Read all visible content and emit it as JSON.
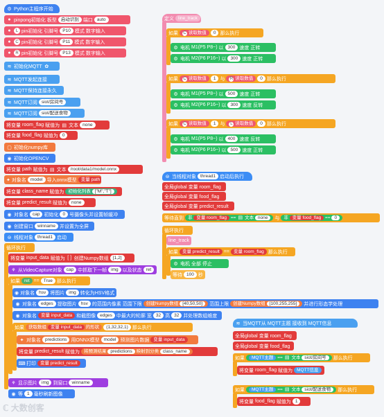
{
  "p1": {
    "b0": "Python主程序开始",
    "b1": [
      "pinpong初始化 板型",
      "启动识别",
      "端口",
      "auto"
    ],
    "b2": [
      "pin初始化 引脚号",
      "P10",
      "模式",
      "数字输入"
    ],
    "b3": [
      "pin初始化 引脚号",
      "P11",
      "模式",
      "数字输入"
    ],
    "b4": [
      "pin初始化 引脚号",
      "P13",
      "模式",
      "数字输入"
    ],
    "b5": "初始化MQTT",
    "b6": "MQTT发起连接",
    "b7": "MQTT保持连接永久",
    "b8": [
      "MQTT订阅",
      "siot/房间号"
    ],
    "b9": [
      "MQTT订阅",
      "siot/配送食物"
    ],
    "b10": [
      "将变量",
      "room_flag",
      "赋值为",
      "文本",
      "none"
    ],
    "b11": [
      "将变量",
      "food_flag",
      "赋值为",
      "0"
    ],
    "b12": "初始化numpy库",
    "b13": "初始化OPENCV",
    "b14": [
      "将变量",
      "path",
      "赋值为",
      "文本",
      "/root/data1/model.onnx"
    ],
    "b15": [
      "对象名",
      "model",
      "导入onnx模型",
      "变量 path"
    ],
    "b16": [
      "将变量",
      "class_name",
      "赋值为",
      "初始化列表",
      "[\"M\",\"T\"]"
    ],
    "b17": [
      "将变量",
      "predict_result",
      "赋值为",
      "none"
    ],
    "b18": [
      "对象名",
      "cap",
      "初始化",
      "0",
      "号摄像头并设置帧缓冲"
    ],
    "b19": [
      "创建窗口",
      "winname",
      "并设置为全屏"
    ],
    "b20": [
      "线程对象",
      "thread1",
      "启动"
    ],
    "b21": "循环执行",
    "b22": [
      "将变量",
      "input_data",
      "赋值为",
      "创建Numpy数组",
      "[1,2]"
    ],
    "b23": [
      "从VideoCapture对象",
      "cap",
      "中抓取下一帧",
      "img",
      "以及状态",
      "ret"
    ],
    "b24": [
      "如果",
      "ret",
      "==",
      "True",
      "那么执行"
    ],
    "b25": [
      "对象名",
      "hsv",
      "将图片",
      "img",
      "转化为HSV格式"
    ],
    "b26": [
      "对象名",
      "edges",
      "提取图片",
      "hsv",
      "的范围内像素 范围下限",
      "创建Numpy数组",
      "[40,50,50]",
      "范围上限",
      "创建Numpy数组",
      "[100,255,255]",
      "并进行形态学处理"
    ],
    "b27": [
      "对象名",
      "变量 input_data",
      "和截图像",
      "edges",
      "中最大的轮廓 宽",
      "32",
      "高",
      "32",
      "并处理数组维度"
    ],
    "b28": [
      "如果",
      "获取数组",
      "变量 input_data",
      "的形状",
      "(1,32,32,1)",
      "那么执行"
    ],
    "b29": [
      "对象名",
      "predictions",
      "用ONNX模型",
      "model",
      "预测图片数据",
      "变量 input_data"
    ],
    "b30": [
      "将变量",
      "predict_result",
      "赋值为",
      "将预测结果",
      "predictions",
      "映射到分类",
      "class_name"
    ],
    "b31": [
      "打印",
      "变量 predict_result"
    ],
    "b32": [
      "显示图片",
      "img",
      "到窗口",
      "winname"
    ],
    "b33": [
      "等",
      "1",
      "毫秒刷新图像"
    ]
  },
  "p2": {
    "h": [
      "定义",
      "line_track"
    ],
    "if1": [
      "如果",
      "C",
      "读取数值",
      "0",
      "那么执行"
    ],
    "m1a": [
      "电机",
      "M1(P5 P8~)",
      "以",
      "300",
      "速度",
      "正转"
    ],
    "m1b": [
      "电机",
      "M2(P6 P16~)",
      "以",
      "300",
      "速度",
      "正转"
    ],
    "if2": [
      "如果",
      "C",
      "读取数值",
      "1",
      "与",
      "R",
      "读取数值",
      "0",
      "那么执行"
    ],
    "m2a": [
      "电机",
      "M1(P5 P8~)",
      "以",
      "500",
      "速度",
      "正转"
    ],
    "m2b": [
      "电机",
      "M2(P6 P16~)",
      "以",
      "300",
      "速度",
      "反转"
    ],
    "if3": [
      "如果",
      "C",
      "读取数值",
      "1",
      "与",
      "L",
      "读取数值",
      "0",
      "那么执行"
    ],
    "m3a": [
      "电机",
      "M1(P5 P8~)",
      "以",
      "400",
      "速度",
      "反转"
    ],
    "m3b": [
      "电机",
      "M2(P6 P16~)",
      "以",
      "500",
      "速度",
      "正转"
    ]
  },
  "p3": {
    "h": [
      "当线程对象",
      "thread1",
      "启动后执行"
    ],
    "g1": [
      "全局global",
      "变量 room_flag"
    ],
    "g2": [
      "全局global",
      "变量 food_flag"
    ],
    "g3": [
      "全局global",
      "变量 predict_result"
    ],
    "w": [
      "等待直到",
      "非",
      "变量 room_flag",
      "==",
      "文本",
      "none",
      "与",
      "非",
      "变量 food_flag",
      "==",
      "0"
    ],
    "loop": "循环执行",
    "lt": "line_track",
    "if": [
      "如果",
      "变量 predict_result",
      "==",
      "变量 room_flag",
      "那么执行"
    ],
    "stop": [
      "电机",
      "全部",
      "停止"
    ],
    "wait": [
      "等待",
      "100",
      "秒"
    ]
  },
  "p4": {
    "h": [
      "当MQTT从",
      "MQTT主题",
      "接收到",
      "MQTT信息"
    ],
    "g1": [
      "全局global",
      "变量 room_flag"
    ],
    "g2": [
      "全局global",
      "变量 food_flag"
    ],
    "if1": [
      "如果",
      "MQTT主题",
      "==",
      "文本",
      "siot/房间号",
      "那么执行"
    ],
    "set1": [
      "将变量",
      "room_flag",
      "赋值为",
      "MQTT信息"
    ],
    "if2": [
      "如果",
      "MQTT主题",
      "==",
      "文本",
      "siot/配送食物",
      "那么执行"
    ],
    "set2": [
      "将变量",
      "food_flag",
      "赋值为",
      "1"
    ]
  },
  "watermark": "大数创客",
  "colors": {
    "pink": "#f0566c",
    "blue": "#3e82f0",
    "red": "#e23b3b",
    "orange": "#f5a623",
    "green": "#2bbf63",
    "purple": "#9e3ee0"
  }
}
